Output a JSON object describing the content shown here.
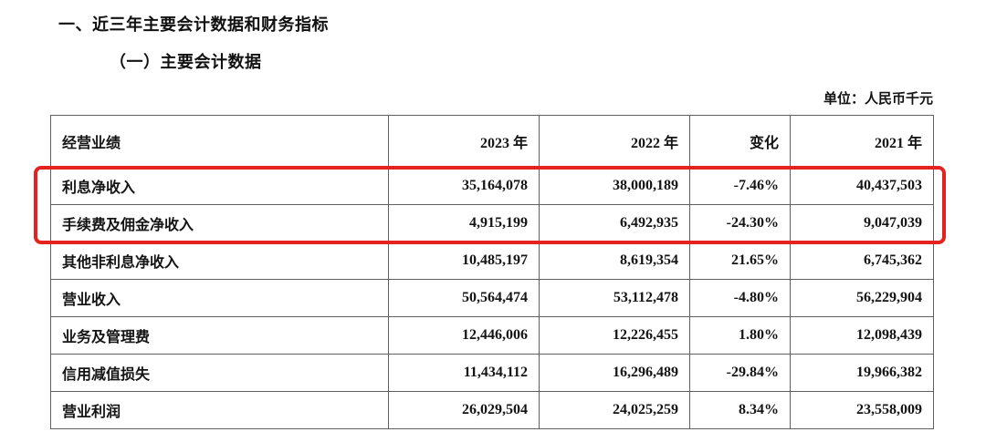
{
  "page": {
    "heading": "一、近三年主要会计数据和财务指标",
    "subheading": "（一）主要会计数据",
    "unit_label": "单位：人民币千元"
  },
  "table": {
    "headers": [
      "经营业绩",
      "2023 年",
      "2022 年",
      "变化",
      "2021 年"
    ],
    "rows": [
      [
        "利息净收入",
        "35,164,078",
        "38,000,189",
        "-7.46%",
        "40,437,503"
      ],
      [
        "手续费及佣金净收入",
        "4,915,199",
        "6,492,935",
        "-24.30%",
        "9,047,039"
      ],
      [
        "其他非利息净收入",
        "10,485,197",
        "8,619,354",
        "21.65%",
        "6,745,362"
      ],
      [
        "营业收入",
        "50,564,474",
        "53,112,478",
        "-4.80%",
        "56,229,904"
      ],
      [
        "业务及管理费",
        "12,446,006",
        "12,226,455",
        "1.80%",
        "12,098,439"
      ],
      [
        "信用减值损失",
        "11,434,112",
        "16,296,489",
        "-29.84%",
        "19,966,382"
      ],
      [
        "营业利润",
        "26,029,504",
        "24,025,259",
        "8.34%",
        "23,558,009"
      ]
    ]
  },
  "annotation": {
    "type": "red-highlight-box",
    "color": "#e42320",
    "highlighted_rows": [
      "利息净收入",
      "手续费及佣金净收入"
    ]
  }
}
